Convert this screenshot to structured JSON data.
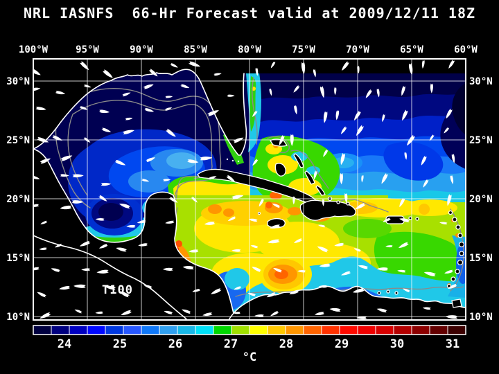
{
  "title": "NRL IASNFS  66-Hr Forecast valid at 2009/12/11 18Z",
  "map": {
    "variable_label": "T100"
  },
  "axes": {
    "lon": [
      "100°W",
      "95°W",
      "90°W",
      "85°W",
      "80°W",
      "75°W",
      "70°W",
      "65°W",
      "60°W"
    ],
    "lat": [
      "30°N",
      "25°N",
      "20°N",
      "15°N",
      "10°N"
    ]
  },
  "colorbar": {
    "ticks": [
      "24",
      "25",
      "26",
      "27",
      "28",
      "29",
      "30",
      "31"
    ],
    "unit": "°C",
    "colors": [
      "#000040",
      "#000080",
      "#0000c0",
      "#0008ff",
      "#0038e0",
      "#2858ff",
      "#1078f8",
      "#30a0f0",
      "#18b8e8",
      "#00e0f8",
      "#00d800",
      "#a0e000",
      "#ffff00",
      "#ffc800",
      "#ff9600",
      "#ff6400",
      "#ff3200",
      "#ff0a00",
      "#f00000",
      "#d80000",
      "#b40000",
      "#8c0000",
      "#640000",
      "#3c0000"
    ]
  },
  "chart_data": {
    "type": "heatmap",
    "title": "NRL IASNFS  66-Hr Forecast valid at 2009/12/11 18Z",
    "model": "NRL IASNFS",
    "forecast_hour": 66,
    "valid_time": "2009/12/11 18Z",
    "variable": "T100",
    "unit": "°C",
    "x_axis": {
      "label": "longitude",
      "ticks": [
        "100°W",
        "95°W",
        "90°W",
        "85°W",
        "80°W",
        "75°W",
        "70°W",
        "65°W",
        "60°W"
      ]
    },
    "y_axis": {
      "label": "latitude",
      "ticks": [
        "30°N",
        "25°N",
        "20°N",
        "15°N",
        "10°N"
      ],
      "labels_both_sides": true
    },
    "colorbar": {
      "tick_values": [
        24,
        25,
        26,
        27,
        28,
        29,
        30,
        31
      ],
      "approx_range": [
        23.5,
        31.5
      ],
      "n_levels": 24,
      "unit": "°C"
    },
    "grid": "5-degree graticule, on",
    "overlays": [
      "white current-vector arrows",
      "gray bathymetry contours",
      "white coastlines",
      "black land mask"
    ],
    "regions": [
      {
        "area": "northern Gulf of Mexico",
        "approx_value_c": 23.5
      },
      {
        "area": "central-western Gulf of Mexico eddies",
        "approx_value_c": 25
      },
      {
        "area": "Bay of Campeche eddy core",
        "approx_value_c": 24
      },
      {
        "area": "Yucatan Channel / Loop Current tongue",
        "approx_value_c": 27.5
      },
      {
        "area": "Straits of Florida / north of Cuba",
        "approx_value_c": 27.5
      },
      {
        "area": "Atlantic north of 27N (NE corner)",
        "approx_value_c": 23.5
      },
      {
        "area": "Atlantic 22-26N",
        "approx_value_c": 25.5
      },
      {
        "area": "waters around the Bahamas",
        "approx_value_c": 27
      },
      {
        "area": "NW Caribbean (Cayman basin)",
        "approx_value_c": 28
      },
      {
        "area": "central Caribbean",
        "approx_value_c": 27.5
      },
      {
        "area": "warm eddy near 77W 16N",
        "approx_value_c": 29
      },
      {
        "area": "Honduras coastal strip",
        "approx_value_c": 29
      },
      {
        "area": "south of SW Haiti hot spot",
        "approx_value_c": 30
      },
      {
        "area": "southern Caribbean upwelling band (Colombia/Venezuela coast)",
        "approx_value_c": 25
      },
      {
        "area": "Venezuela nearshore hot spots",
        "approx_value_c": 30.5
      }
    ]
  }
}
